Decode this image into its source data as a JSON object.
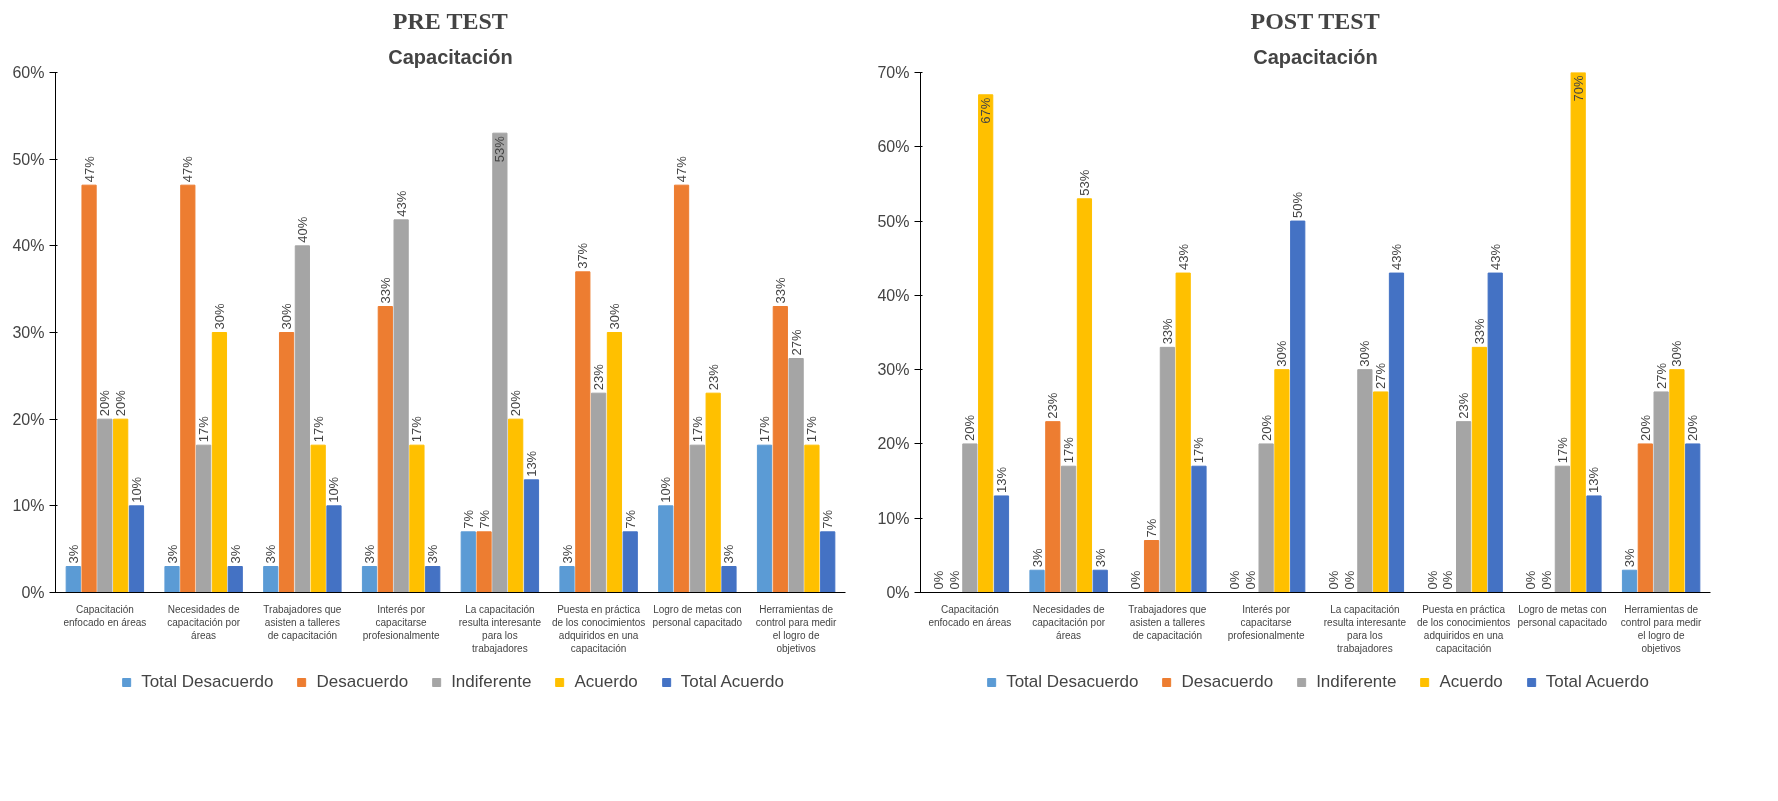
{
  "chart_data": [
    {
      "type": "bar",
      "title": "PRE TEST",
      "subtitle": "Capacitación",
      "categories": [
        "Capacitación enfocado en áreas",
        "Necesidades de capacitación por áreas",
        "Trabajadores que asisten a talleres de capacitación",
        "Interés por capacitarse profesionalmente",
        "La capacitación resulta interesante para los trabajadores",
        "Puesta en práctica de los conocimientos adquiridos en una capacitación",
        "Logro de metas con personal capacitado",
        "Herramientas de control para medir el logro de objetivos"
      ],
      "series": [
        {
          "name": "Total Desacuerdo",
          "color": "#5b9bd5",
          "values": [
            3,
            3,
            3,
            3,
            7,
            3,
            10,
            17
          ],
          "value_labels": [
            "3%",
            "3%",
            "3%",
            "3%",
            "7%",
            "3%",
            "10%",
            "17%"
          ]
        },
        {
          "name": "Desacuerdo",
          "color": "#ed7d31",
          "values": [
            47,
            47,
            30,
            33,
            7,
            37,
            47,
            33
          ],
          "value_labels": [
            "47%",
            "47%",
            "30%",
            "33%",
            "7%",
            "37%",
            "47%",
            "33%"
          ]
        },
        {
          "name": "Indiferente",
          "color": "#a5a5a5",
          "values": [
            20,
            17,
            40,
            43,
            53,
            23,
            17,
            27
          ],
          "value_labels": [
            "20%",
            "17%",
            "40%",
            "43%",
            "53%",
            "23%",
            "17%",
            "27%"
          ]
        },
        {
          "name": "Acuerdo",
          "color": "#ffc000",
          "values": [
            20,
            30,
            17,
            17,
            20,
            30,
            23,
            17
          ],
          "value_labels": [
            "20%",
            "30%",
            "17%",
            "17%",
            "20%",
            "30%",
            "23%",
            "17%"
          ]
        },
        {
          "name": "Total Acuerdo",
          "color": "#4472c4",
          "values": [
            10,
            3,
            10,
            3,
            13,
            7,
            3,
            7
          ],
          "value_labels": [
            "10%",
            "3%",
            "10%",
            "3%",
            "13%",
            "7%",
            "3%",
            "7%"
          ]
        }
      ],
      "ylim": [
        0,
        60
      ],
      "yticks": [
        {
          "value": 0,
          "label": "0%"
        },
        {
          "value": 10,
          "label": "10%"
        },
        {
          "value": 20,
          "label": "20%"
        },
        {
          "value": 30,
          "label": "30%"
        },
        {
          "value": 40,
          "label": "40%"
        },
        {
          "value": 50,
          "label": "50%"
        },
        {
          "value": 60,
          "label": "60%"
        }
      ],
      "legend": "bottom"
    },
    {
      "type": "bar",
      "title": "POST TEST",
      "subtitle": "Capacitación",
      "categories": [
        "Capacitación enfocado en áreas",
        "Necesidades de capacitación por áreas",
        "Trabajadores que asisten a talleres de capacitación",
        "Interés por capacitarse profesionalmente",
        "La capacitación resulta interesante para los trabajadores",
        "Puesta en práctica de los conocimientos adquiridos en una capacitación",
        "Logro de metas con personal capacitado",
        "Herramientas de control para medir el logro de objetivos"
      ],
      "series": [
        {
          "name": "Total Desacuerdo",
          "color": "#5b9bd5",
          "values": [
            0,
            3,
            0,
            0,
            0,
            0,
            0,
            3
          ],
          "value_labels": [
            "0%",
            "3%",
            "0%",
            "0%",
            "0%",
            "0%",
            "0%",
            "3%"
          ]
        },
        {
          "name": "Desacuerdo",
          "color": "#ed7d31",
          "values": [
            0,
            23,
            7,
            0,
            0,
            0,
            0,
            20
          ],
          "value_labels": [
            "0%",
            "23%",
            "7%",
            "0%",
            "0%",
            "0%",
            "0%",
            "20%"
          ]
        },
        {
          "name": "Indiferente",
          "color": "#a5a5a5",
          "values": [
            20,
            17,
            33,
            20,
            30,
            23,
            17,
            27
          ],
          "value_labels": [
            "20%",
            "17%",
            "33%",
            "20%",
            "30%",
            "23%",
            "17%",
            "27%"
          ]
        },
        {
          "name": "Acuerdo",
          "color": "#ffc000",
          "values": [
            67,
            53,
            43,
            30,
            27,
            33,
            70,
            30
          ],
          "value_labels": [
            "67%",
            "53%",
            "43%",
            "30%",
            "27%",
            "33%",
            "70%",
            "30%"
          ]
        },
        {
          "name": "Total Acuerdo",
          "color": "#4472c4",
          "values": [
            13,
            3,
            17,
            50,
            43,
            43,
            13,
            20
          ],
          "value_labels": [
            "13%",
            "3%",
            "17%",
            "50%",
            "43%",
            "43%",
            "13%",
            "20%"
          ]
        }
      ],
      "ylim": [
        0,
        70
      ],
      "yticks": [
        {
          "value": 0,
          "label": "0%"
        },
        {
          "value": 10,
          "label": "10%"
        },
        {
          "value": 20,
          "label": "20%"
        },
        {
          "value": 30,
          "label": "30%"
        },
        {
          "value": 40,
          "label": "40%"
        },
        {
          "value": 50,
          "label": "50%"
        },
        {
          "value": 60,
          "label": "60%"
        },
        {
          "value": 70,
          "label": "70%"
        }
      ],
      "legend": "bottom"
    }
  ]
}
